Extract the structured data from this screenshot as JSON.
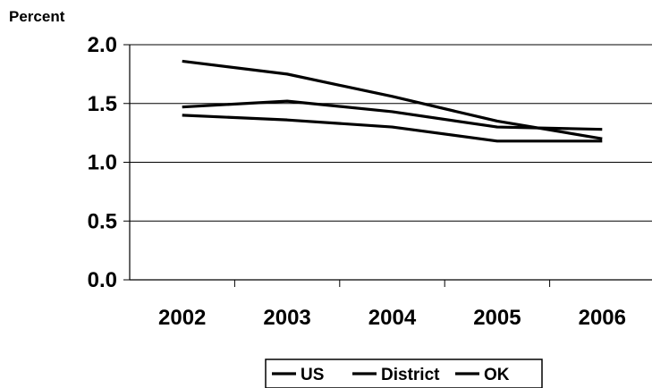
{
  "chart_data": {
    "type": "line",
    "ylabel": "Percent",
    "xlabel": "",
    "categories": [
      "2002",
      "2003",
      "2004",
      "2005",
      "2006"
    ],
    "ylim": [
      0,
      2.0
    ],
    "yticks": [
      "0.0",
      "0.5",
      "1.0",
      "1.5",
      "2.0"
    ],
    "grid": true,
    "legend_position": "bottom-center",
    "series": [
      {
        "name": "US",
        "values": [
          1.86,
          1.75,
          1.56,
          1.35,
          1.2
        ],
        "color": "#000000"
      },
      {
        "name": "District",
        "values": [
          1.47,
          1.52,
          1.43,
          1.3,
          1.28
        ],
        "color": "#000000"
      },
      {
        "name": "OK",
        "values": [
          1.4,
          1.36,
          1.3,
          1.18,
          1.18
        ],
        "color": "#000000"
      }
    ]
  }
}
